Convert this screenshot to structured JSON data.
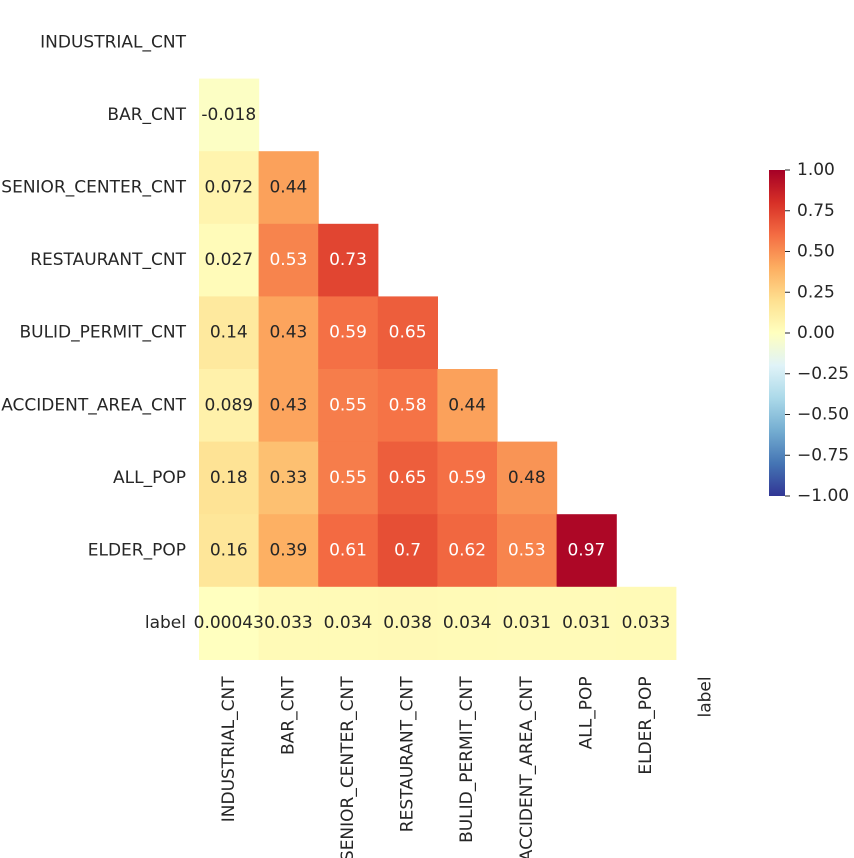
{
  "chart_data": {
    "type": "heatmap",
    "title": "",
    "row_labels": [
      "INDUSTRIAL_CNT",
      "BAR_CNT",
      "SENIOR_CENTER_CNT",
      "RESTAURANT_CNT",
      "BULID_PERMIT_CNT",
      "ACCIDENT_AREA_CNT",
      "ALL_POP",
      "ELDER_POP",
      "label"
    ],
    "col_labels": [
      "INDUSTRIAL_CNT",
      "BAR_CNT",
      "SENIOR_CENTER_CNT",
      "RESTAURANT_CNT",
      "BULID_PERMIT_CNT",
      "ACCIDENT_AREA_CNT",
      "ALL_POP",
      "ELDER_POP",
      "label"
    ],
    "mask": "upper triangle including diagonal",
    "cells": [
      {
        "row": 1,
        "col": 0,
        "value": -0.018,
        "label": "-0.018"
      },
      {
        "row": 2,
        "col": 0,
        "value": 0.072,
        "label": "0.072"
      },
      {
        "row": 2,
        "col": 1,
        "value": 0.44,
        "label": "0.44"
      },
      {
        "row": 3,
        "col": 0,
        "value": 0.027,
        "label": "0.027"
      },
      {
        "row": 3,
        "col": 1,
        "value": 0.53,
        "label": "0.53"
      },
      {
        "row": 3,
        "col": 2,
        "value": 0.73,
        "label": "0.73"
      },
      {
        "row": 4,
        "col": 0,
        "value": 0.14,
        "label": "0.14"
      },
      {
        "row": 4,
        "col": 1,
        "value": 0.43,
        "label": "0.43"
      },
      {
        "row": 4,
        "col": 2,
        "value": 0.59,
        "label": "0.59"
      },
      {
        "row": 4,
        "col": 3,
        "value": 0.65,
        "label": "0.65"
      },
      {
        "row": 5,
        "col": 0,
        "value": 0.089,
        "label": "0.089"
      },
      {
        "row": 5,
        "col": 1,
        "value": 0.43,
        "label": "0.43"
      },
      {
        "row": 5,
        "col": 2,
        "value": 0.55,
        "label": "0.55"
      },
      {
        "row": 5,
        "col": 3,
        "value": 0.58,
        "label": "0.58"
      },
      {
        "row": 5,
        "col": 4,
        "value": 0.44,
        "label": "0.44"
      },
      {
        "row": 6,
        "col": 0,
        "value": 0.18,
        "label": "0.18"
      },
      {
        "row": 6,
        "col": 1,
        "value": 0.33,
        "label": "0.33"
      },
      {
        "row": 6,
        "col": 2,
        "value": 0.55,
        "label": "0.55"
      },
      {
        "row": 6,
        "col": 3,
        "value": 0.65,
        "label": "0.65"
      },
      {
        "row": 6,
        "col": 4,
        "value": 0.59,
        "label": "0.59"
      },
      {
        "row": 6,
        "col": 5,
        "value": 0.48,
        "label": "0.48"
      },
      {
        "row": 7,
        "col": 0,
        "value": 0.16,
        "label": "0.16"
      },
      {
        "row": 7,
        "col": 1,
        "value": 0.39,
        "label": "0.39"
      },
      {
        "row": 7,
        "col": 2,
        "value": 0.61,
        "label": "0.61"
      },
      {
        "row": 7,
        "col": 3,
        "value": 0.7,
        "label": "0.7"
      },
      {
        "row": 7,
        "col": 4,
        "value": 0.62,
        "label": "0.62"
      },
      {
        "row": 7,
        "col": 5,
        "value": 0.53,
        "label": "0.53"
      },
      {
        "row": 7,
        "col": 6,
        "value": 0.97,
        "label": "0.97"
      },
      {
        "row": 8,
        "col": 0,
        "value": 0.00043,
        "label": "0.00043"
      },
      {
        "row": 8,
        "col": 1,
        "value": 0.033,
        "label": "0.033"
      },
      {
        "row": 8,
        "col": 2,
        "value": 0.034,
        "label": "0.034"
      },
      {
        "row": 8,
        "col": 3,
        "value": 0.038,
        "label": "0.038"
      },
      {
        "row": 8,
        "col": 4,
        "value": 0.034,
        "label": "0.034"
      },
      {
        "row": 8,
        "col": 5,
        "value": 0.031,
        "label": "0.031"
      },
      {
        "row": 8,
        "col": 6,
        "value": 0.031,
        "label": "0.031"
      },
      {
        "row": 8,
        "col": 7,
        "value": 0.033,
        "label": "0.033"
      }
    ],
    "colorbar": {
      "vmin": -1.0,
      "vmax": 1.0,
      "colormap": "RdYlBu_r",
      "ticks": [
        {
          "value": 1.0,
          "label": "1.00"
        },
        {
          "value": 0.75,
          "label": "0.75"
        },
        {
          "value": 0.5,
          "label": "0.50"
        },
        {
          "value": 0.25,
          "label": "0.25"
        },
        {
          "value": 0.0,
          "label": "0.00"
        },
        {
          "value": -0.25,
          "label": "−0.25"
        },
        {
          "value": -0.5,
          "label": "−0.50"
        },
        {
          "value": -0.75,
          "label": "−0.75"
        },
        {
          "value": -1.0,
          "label": "−1.00"
        }
      ]
    },
    "colors": {
      "dark_text": "#262626",
      "light_text": "#ffffff",
      "background": "#ffffff",
      "colormap_stops": [
        "#313695",
        "#4575b4",
        "#74add1",
        "#abd9e9",
        "#e0f3f8",
        "#ffffbf",
        "#fee090",
        "#fdae61",
        "#f46d43",
        "#d73027",
        "#a50026"
      ]
    }
  }
}
